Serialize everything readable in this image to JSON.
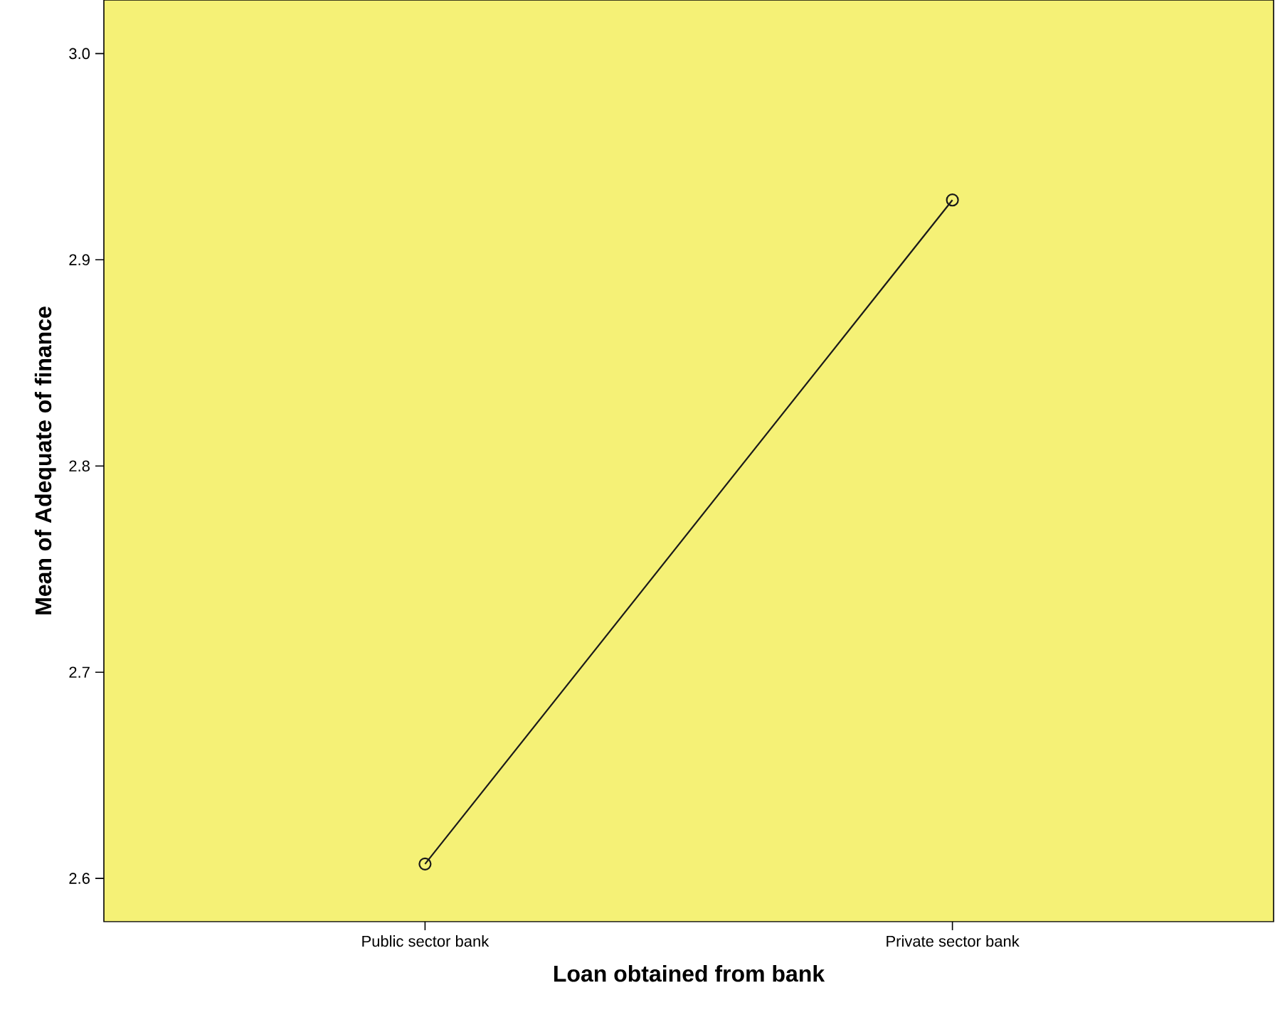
{
  "chart_data": {
    "type": "line",
    "xlabel": "Loan obtained from bank",
    "ylabel": "Mean of Adequate of finance",
    "categories": [
      "Public sector bank",
      "Private sector bank"
    ],
    "series": [
      {
        "color": "#1a1a1a",
        "values": [
          2.607,
          2.929
        ]
      }
    ],
    "ylim": [
      2.579,
      3.026
    ],
    "yticks": [
      2.6,
      2.7,
      2.8,
      2.9,
      {
        "value": 3.0,
        "label": "3.0"
      }
    ],
    "marker": "circle",
    "line_style": "solid"
  }
}
